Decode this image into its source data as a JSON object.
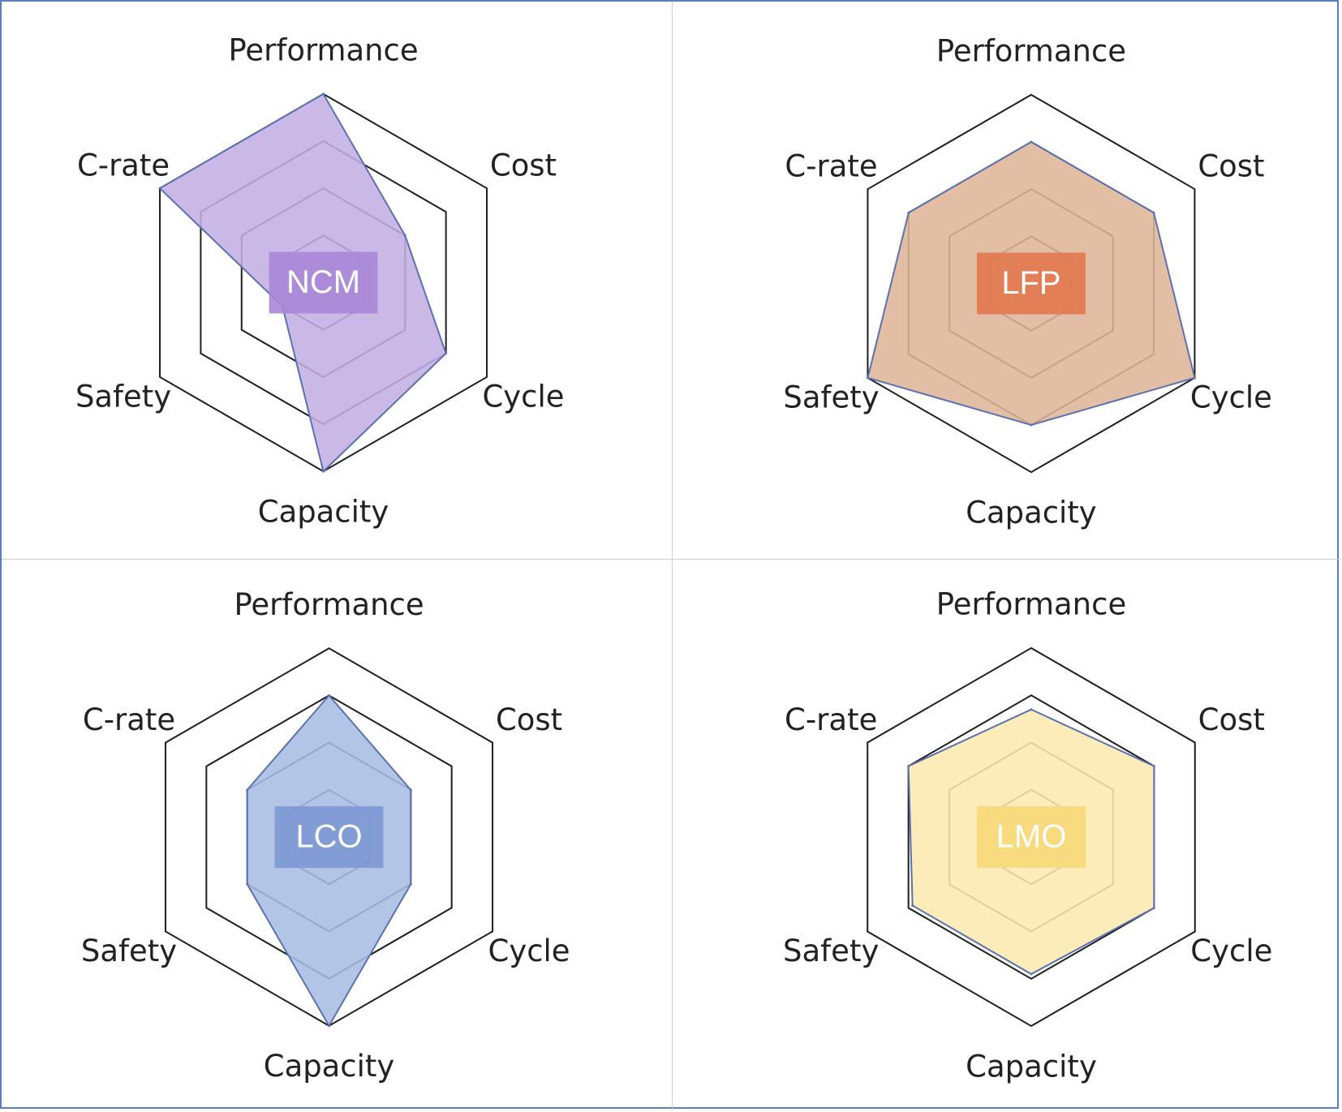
{
  "chart_data": [
    {
      "type": "radar",
      "label": "NCM",
      "axes": [
        "Performance",
        "Cost",
        "Cycle",
        "Capacity",
        "Safety",
        "C-rate"
      ],
      "values": [
        4,
        2,
        3,
        4,
        1,
        4
      ],
      "rlim": [
        0,
        4
      ],
      "rings": 4,
      "fill": "#c3aee3",
      "label_box": "#a887d6"
    },
    {
      "type": "radar",
      "label": "LFP",
      "axes": [
        "Performance",
        "Cost",
        "Cycle",
        "Capacity",
        "Safety",
        "C-rate"
      ],
      "values": [
        3,
        3,
        4,
        3,
        4,
        3
      ],
      "rlim": [
        0,
        4
      ],
      "rings": 4,
      "fill": "#deb597",
      "label_box": "#e2784e"
    },
    {
      "type": "radar",
      "label": "LCO",
      "axes": [
        "Performance",
        "Cost",
        "Cycle",
        "Capacity",
        "Safety",
        "C-rate"
      ],
      "values": [
        3,
        2,
        2,
        4,
        2,
        2
      ],
      "rlim": [
        0,
        4
      ],
      "rings": 4,
      "fill": "#a9bde3",
      "label_box": "#7c98d3"
    },
    {
      "type": "radar",
      "label": "LMO",
      "axes": [
        "Performance",
        "Cost",
        "Cycle",
        "Capacity",
        "Safety",
        "C-rate"
      ],
      "values": [
        2.7,
        3,
        3,
        2.9,
        2.9,
        3
      ],
      "rlim": [
        0,
        4
      ],
      "rings": 4,
      "fill": "#fbe9b0",
      "label_box": "#f7d978"
    }
  ]
}
